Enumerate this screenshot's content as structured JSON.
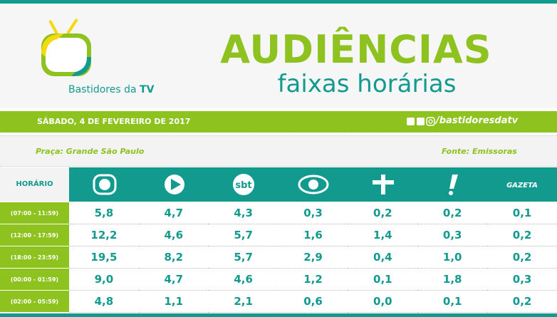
{
  "logo": {
    "text": "Bastidores da",
    "bold": "TV"
  },
  "title": "AUDIÊNCIAS",
  "subtitle": "faixas horárias",
  "date": "SÁBADO, 4 DE FEVEREIRO DE 2017",
  "social": "/bastidoresdatv",
  "praca": "Praça: Grande São Paulo",
  "fonte": "Fonte: Emissoras",
  "table": {
    "header": "HORÁRIO",
    "channel_texts": {
      "sbt": "sbt",
      "gazeta": "GAZETA"
    },
    "rows": [
      [
        "(07:00 - 11:59)",
        "5,8",
        "4,7",
        "4,3",
        "0,3",
        "0,2",
        "0,2",
        "0,1"
      ],
      [
        "(12:00 - 17:59)",
        "12,2",
        "4,6",
        "5,7",
        "1,6",
        "1,4",
        "0,3",
        "0,2"
      ],
      [
        "(18:00 - 23:59)",
        "19,5",
        "8,2",
        "5,7",
        "2,9",
        "0,4",
        "1,0",
        "0,2"
      ],
      [
        "(00:00 - 01:59)",
        "9,0",
        "4,7",
        "4,6",
        "1,2",
        "0,1",
        "1,8",
        "0,3"
      ],
      [
        "(02:00 - 05:59)",
        "4,8",
        "1,1",
        "2,1",
        "0,6",
        "0,0",
        "0,1",
        "0,2"
      ]
    ]
  }
}
